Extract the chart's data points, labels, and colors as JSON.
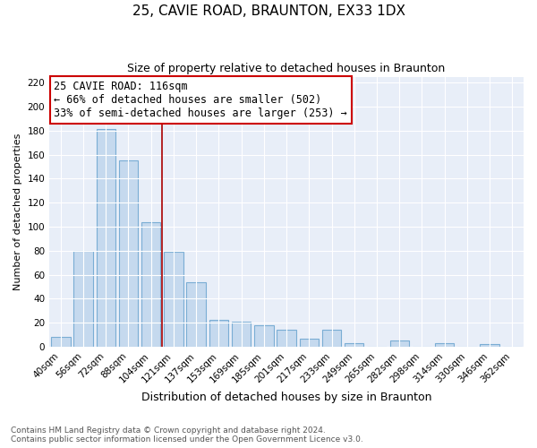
{
  "title": "25, CAVIE ROAD, BRAUNTON, EX33 1DX",
  "subtitle": "Size of property relative to detached houses in Braunton",
  "xlabel": "Distribution of detached houses by size in Braunton",
  "ylabel": "Number of detached properties",
  "categories": [
    "40sqm",
    "56sqm",
    "72sqm",
    "88sqm",
    "104sqm",
    "121sqm",
    "137sqm",
    "153sqm",
    "169sqm",
    "185sqm",
    "201sqm",
    "217sqm",
    "233sqm",
    "249sqm",
    "265sqm",
    "282sqm",
    "298sqm",
    "314sqm",
    "330sqm",
    "346sqm",
    "362sqm"
  ],
  "values": [
    8,
    80,
    181,
    155,
    104,
    79,
    54,
    22,
    21,
    18,
    14,
    7,
    14,
    3,
    0,
    5,
    0,
    3,
    0,
    2,
    0
  ],
  "bar_color": "#c5d9ee",
  "bar_edge_color": "#7aadd4",
  "vline_x": 4.5,
  "vline_color": "#aa0000",
  "annotation_title": "25 CAVIE ROAD: 116sqm",
  "annotation_line1": "← 66% of detached houses are smaller (502)",
  "annotation_line2": "33% of semi-detached houses are larger (253) →",
  "annotation_box_color": "#ffffff",
  "annotation_box_edge": "#cc0000",
  "ylim": [
    0,
    225
  ],
  "yticks": [
    0,
    20,
    40,
    60,
    80,
    100,
    120,
    140,
    160,
    180,
    200,
    220
  ],
  "footer1": "Contains HM Land Registry data © Crown copyright and database right 2024.",
  "footer2": "Contains public sector information licensed under the Open Government Licence v3.0.",
  "title_fontsize": 11,
  "subtitle_fontsize": 9,
  "xlabel_fontsize": 9,
  "ylabel_fontsize": 8,
  "tick_fontsize": 7.5,
  "footer_fontsize": 6.5,
  "annotation_title_fontsize": 8.5,
  "annotation_text_fontsize": 8.5,
  "bg_color": "#e8eef8"
}
